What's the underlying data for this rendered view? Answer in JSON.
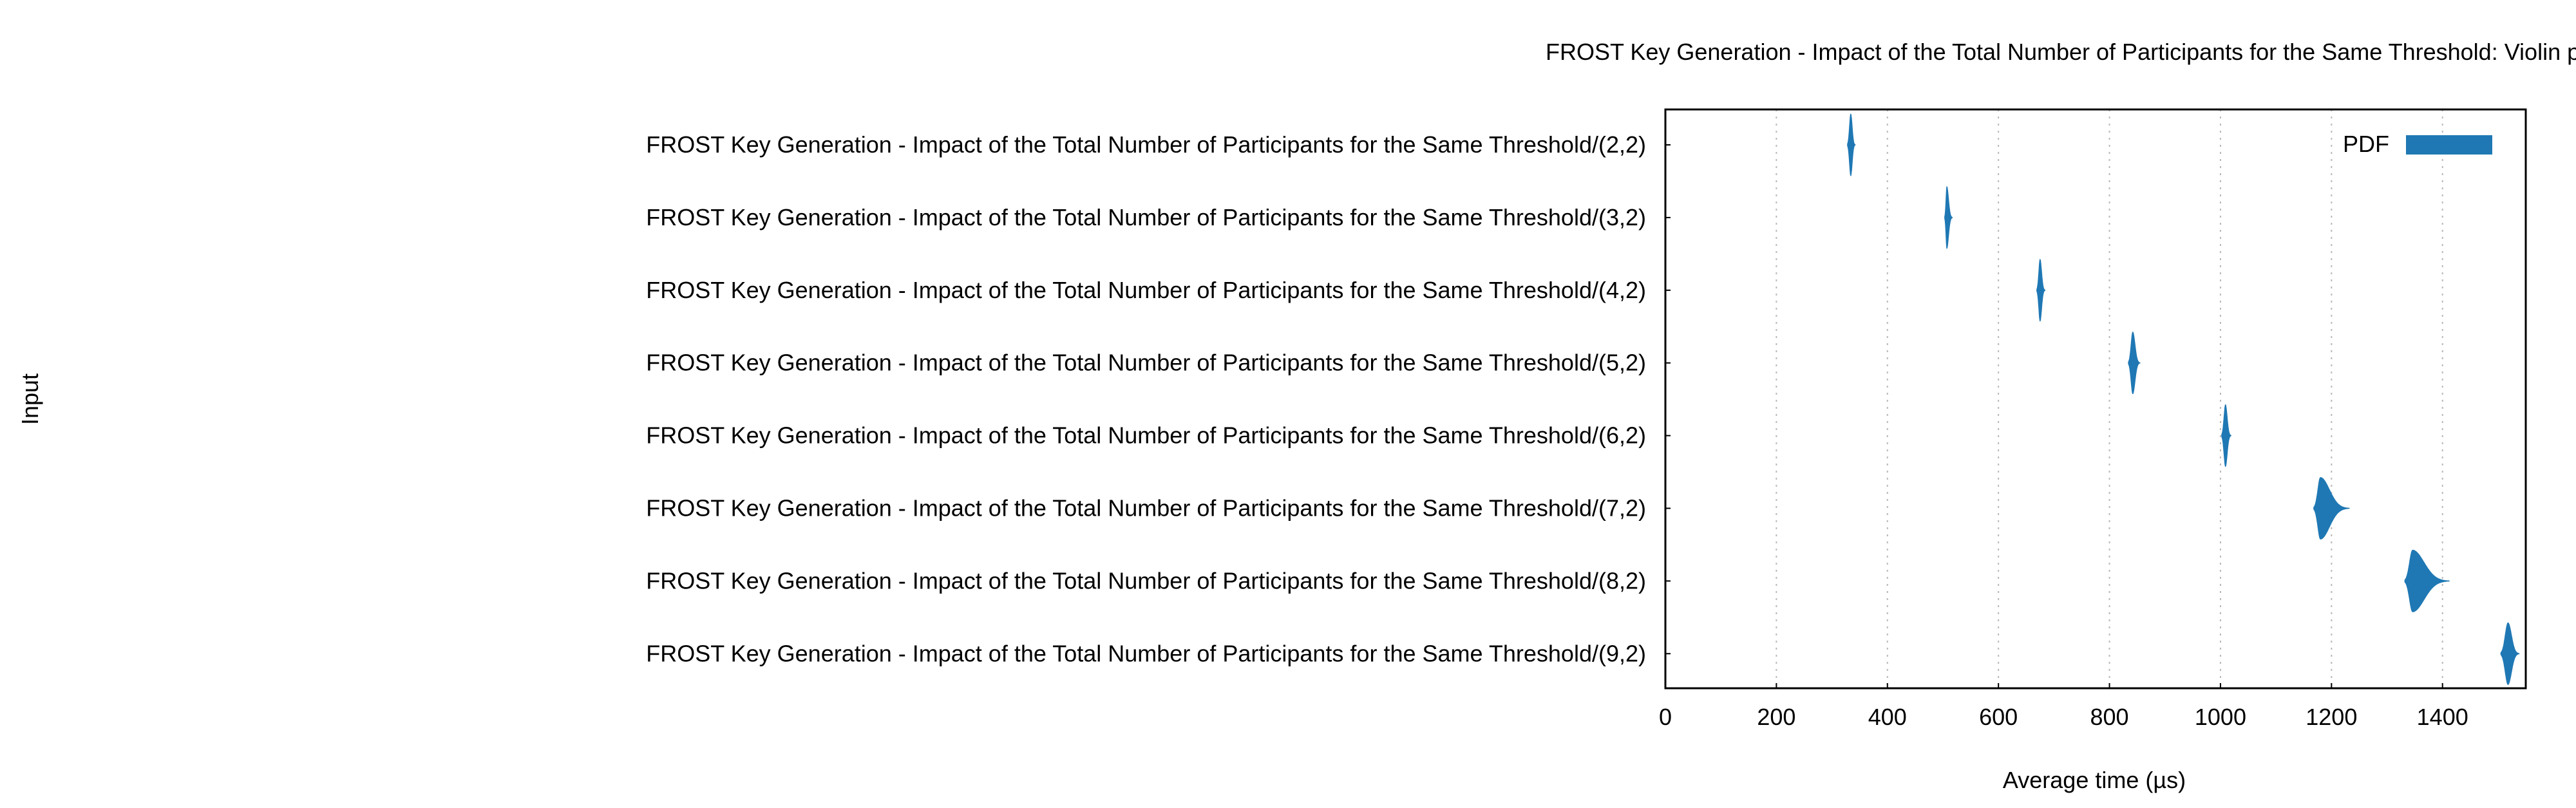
{
  "chart_data": {
    "type": "violin",
    "title": "FROST Key Generation - Impact of the Total Number of Participants for the Same Threshold: Violin plot",
    "xlabel": "Average time (µs)",
    "ylabel": "Input",
    "xlim": [
      0,
      1550
    ],
    "xticks": [
      0,
      200,
      400,
      600,
      800,
      1000,
      1200,
      1400
    ],
    "grid": "vertical-dotted",
    "legend": {
      "position": "top-right",
      "entries": [
        {
          "label": "PDF",
          "color": "#1f78b4"
        }
      ]
    },
    "categories": [
      "FROST Key Generation - Impact of the Total Number of Participants for the Same Threshold/(2,2)",
      "FROST Key Generation - Impact of the Total Number of Participants for the Same Threshold/(3,2)",
      "FROST Key Generation - Impact of the Total Number of Participants for the Same Threshold/(4,2)",
      "FROST Key Generation - Impact of the Total Number of Participants for the Same Threshold/(5,2)",
      "FROST Key Generation - Impact of the Total Number of Participants for the Same Threshold/(6,2)",
      "FROST Key Generation - Impact of the Total Number of Participants for the Same Threshold/(7,2)",
      "FROST Key Generation - Impact of the Total Number of Participants for the Same Threshold/(8,2)",
      "FROST Key Generation - Impact of the Total Number of Participants for the Same Threshold/(9,2)"
    ],
    "series": [
      {
        "label": "(2,2)",
        "center": 334,
        "min": 328,
        "max": 342
      },
      {
        "label": "(3,2)",
        "center": 507,
        "min": 503,
        "max": 517
      },
      {
        "label": "(4,2)",
        "center": 675,
        "min": 669,
        "max": 684
      },
      {
        "label": "(5,2)",
        "center": 842,
        "min": 834,
        "max": 855
      },
      {
        "label": "(6,2)",
        "center": 1009,
        "min": 1002,
        "max": 1019
      },
      {
        "label": "(7,2)",
        "center": 1180,
        "min": 1168,
        "max": 1232
      },
      {
        "label": "(8,2)",
        "center": 1346,
        "min": 1332,
        "max": 1412
      },
      {
        "label": "(9,2)",
        "center": 1518,
        "min": 1505,
        "max": 1538
      }
    ]
  }
}
